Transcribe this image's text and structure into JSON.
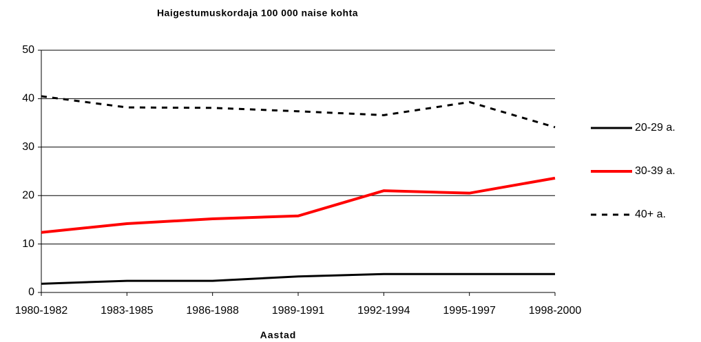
{
  "chart_data": {
    "type": "line",
    "title": "Haigestumuskordaja 100 000 naise kohta",
    "x_label": "Aastad",
    "categories": [
      "1980-1982",
      "1983-1985",
      "1986-1988",
      "1989-1991",
      "1992-1994",
      "1995-1997",
      "1998-2000"
    ],
    "series": [
      {
        "name": "20-29 a.",
        "color": "#000000",
        "line_style": "solid",
        "line_width": 3,
        "values": [
          1.8,
          2.4,
          2.4,
          3.3,
          3.8,
          3.8,
          3.8
        ]
      },
      {
        "name": "30-39 a.",
        "color": "#ff0000",
        "line_style": "solid",
        "line_width": 4,
        "values": [
          12.4,
          14.2,
          15.2,
          15.8,
          21.0,
          20.5,
          23.6
        ]
      },
      {
        "name": "40+ a.",
        "color": "#000000",
        "line_style": "dashed",
        "line_width": 3,
        "values": [
          40.5,
          38.2,
          38.1,
          37.4,
          36.6,
          39.3,
          34.1
        ]
      }
    ],
    "ylim": [
      0,
      50
    ],
    "yticks": [
      0,
      10,
      20,
      30,
      40,
      50
    ],
    "grid": true,
    "legend": "right"
  }
}
